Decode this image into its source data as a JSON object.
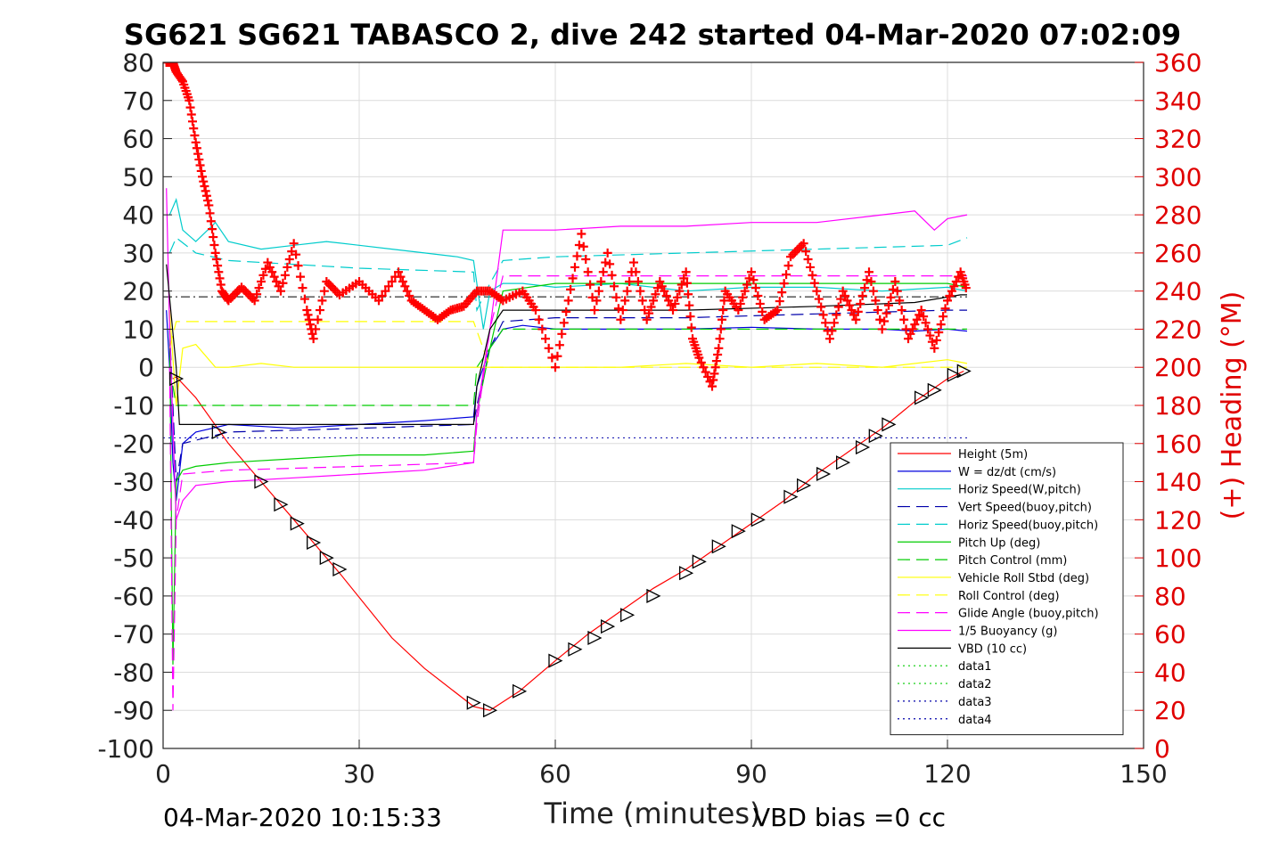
{
  "chart_data": {
    "type": "line",
    "title": "SG621 SG621 TABASCO 2, dive 242 started 04-Mar-2020 07:02:09",
    "xlabel": "Time (minutes)",
    "ylabel_right": "(+) Heading (°M)",
    "xlim": [
      0,
      150
    ],
    "ylim": [
      -100,
      80
    ],
    "ylim_right": [
      0,
      360
    ],
    "x_ticks": [
      "0",
      "30",
      "60",
      "90",
      "120",
      "150"
    ],
    "y_ticks": [
      "80",
      "70",
      "60",
      "50",
      "40",
      "30",
      "20",
      "10",
      "0",
      "-10",
      "-20",
      "-30",
      "-40",
      "-50",
      "-60",
      "-70",
      "-80",
      "-90",
      "-100"
    ],
    "y_ticks_right": [
      "360",
      "340",
      "320",
      "300",
      "280",
      "260",
      "240",
      "220",
      "200",
      "180",
      "160",
      "140",
      "120",
      "100",
      "80",
      "60",
      "40",
      "20",
      "0"
    ],
    "grid": true,
    "legend_position": "lower-right",
    "footer_left": "04-Mar-2020 10:15:33",
    "footer_right": "VBD bias =0 cc",
    "series": [
      {
        "name": "Height (5m)",
        "color": "#ff0000",
        "style": "solid",
        "x": [
          1.5,
          2,
          5,
          10,
          15,
          20,
          25,
          27,
          35,
          40,
          47.5,
          50,
          54.5,
          60,
          65,
          70,
          75,
          80,
          85,
          90,
          95,
          100,
          105,
          110,
          115,
          120,
          122.5
        ],
        "y": [
          -3,
          -2.5,
          -8,
          -20,
          -30,
          -40,
          -50,
          -54,
          -71,
          -79,
          -89,
          -90,
          -85,
          -77,
          -70,
          -64,
          -58,
          -53,
          -47,
          -41,
          -35,
          -28,
          -22,
          -16,
          -9,
          -3,
          -1
        ]
      },
      {
        "name": "W = dz/dt (cm/s)",
        "color": "#0000dd",
        "style": "solid",
        "x": [
          0.5,
          1,
          1.5,
          2,
          3,
          5,
          10,
          20,
          30,
          40,
          47.5,
          48,
          50,
          52,
          55,
          60,
          70,
          80,
          90,
          100,
          110,
          115,
          120,
          123
        ],
        "y": [
          15,
          0,
          -25,
          -35,
          -20,
          -17,
          -15,
          -16,
          -15,
          -14,
          -13,
          -5,
          5,
          10,
          11,
          10,
          10,
          10,
          10.5,
          10,
          10,
          9.5,
          10,
          9.5
        ]
      },
      {
        "name": "Horiz Speed(W,pitch)",
        "color": "#00cccc",
        "style": "solid",
        "x": [
          1,
          2,
          3,
          5,
          8,
          10,
          15,
          20,
          25,
          30,
          35,
          40,
          45,
          47.5,
          49,
          50,
          52,
          55,
          60,
          70,
          80,
          90,
          100,
          110,
          120,
          123
        ],
        "y": [
          40,
          44,
          36,
          33,
          38,
          33,
          31,
          32,
          33,
          32,
          31,
          30,
          29,
          28,
          10,
          20,
          22,
          22,
          21,
          22,
          20,
          21,
          21,
          20,
          21,
          20
        ]
      },
      {
        "name": "Vert Speed(buoy,pitch)",
        "color": "#0000aa",
        "style": "dashed",
        "x": [
          1,
          2,
          3,
          10,
          30,
          47.5,
          48,
          50,
          52,
          60,
          80,
          100,
          120,
          123
        ],
        "y": [
          10,
          -30,
          -20,
          -17,
          -16,
          -15,
          -10,
          5,
          12,
          13,
          13,
          14,
          15,
          15
        ]
      },
      {
        "name": "Horiz Speed(buoy,pitch)",
        "color": "#00cccc",
        "style": "dashed",
        "x": [
          1,
          2,
          5,
          10,
          30,
          47.5,
          48,
          50,
          52,
          60,
          80,
          100,
          120,
          123
        ],
        "y": [
          30,
          34,
          30,
          28,
          26,
          25,
          15,
          22,
          28,
          29,
          30,
          31,
          32,
          34
        ]
      },
      {
        "name": "Pitch Up (deg)",
        "color": "#00cc00",
        "style": "solid",
        "x": [
          1,
          1.5,
          2,
          3,
          5,
          10,
          20,
          30,
          40,
          47.5,
          48,
          50,
          52,
          60,
          80,
          100,
          120,
          123
        ],
        "y": [
          10,
          -78,
          -30,
          -27,
          -26,
          -25,
          -24,
          -23,
          -23,
          -22,
          -12,
          5,
          20,
          22,
          22,
          22,
          22,
          21
        ]
      },
      {
        "name": "Pitch Control (mm)",
        "color": "#00cc00",
        "style": "dashed",
        "x": [
          1,
          2,
          3,
          10,
          30,
          47.5,
          48,
          52,
          60,
          80,
          100,
          120,
          123
        ],
        "y": [
          0,
          -10,
          -10,
          -10,
          -10,
          -10,
          0,
          10,
          10,
          10,
          10,
          10,
          10
        ]
      },
      {
        "name": "Vehicle Roll Stbd (deg)",
        "color": "#ffff00",
        "style": "solid",
        "x": [
          1,
          2,
          3,
          5,
          8,
          10,
          15,
          20,
          30,
          40,
          47.5,
          50,
          55,
          60,
          70,
          80,
          90,
          100,
          110,
          120,
          123
        ],
        "y": [
          15,
          -10,
          5,
          6,
          0,
          0,
          1,
          0,
          0,
          0,
          0,
          0,
          0,
          0,
          0,
          1,
          0,
          1,
          0,
          2,
          1
        ]
      },
      {
        "name": "Roll Control (deg)",
        "color": "#ffff00",
        "style": "dashed",
        "x": [
          1,
          2,
          3,
          10,
          30,
          47.5,
          50,
          60,
          80,
          100,
          120,
          123
        ],
        "y": [
          5,
          12,
          12,
          12,
          12,
          12,
          0,
          0,
          0,
          0,
          0,
          0
        ]
      },
      {
        "name": "Glide Angle (buoy,pitch)",
        "color": "#ff00ff",
        "style": "dashed",
        "x": [
          1,
          1.5,
          2,
          3,
          10,
          30,
          47.5,
          48,
          50,
          52,
          60,
          80,
          100,
          120,
          123
        ],
        "y": [
          0,
          -90,
          -40,
          -28,
          -27,
          -26,
          -25,
          -15,
          10,
          24,
          24,
          24,
          24,
          24,
          24
        ]
      },
      {
        "name": "1/5 Buoyancy (g)",
        "color": "#ff00ff",
        "style": "solid",
        "x": [
          0.5,
          1,
          2,
          3,
          5,
          10,
          20,
          30,
          40,
          47.5,
          48,
          50,
          52,
          60,
          70,
          80,
          90,
          100,
          110,
          115,
          118,
          120,
          123
        ],
        "y": [
          47,
          10,
          -40,
          -35,
          -31,
          -30,
          -29,
          -28,
          -27,
          -25,
          -12,
          10,
          36,
          36,
          37,
          37,
          38,
          38,
          40,
          41,
          36,
          39,
          40
        ]
      },
      {
        "name": "VBD (10 cc)",
        "color": "#000000",
        "style": "solid",
        "x": [
          0.5,
          2,
          2.5,
          47.5,
          48,
          50,
          52,
          60,
          80,
          100,
          115,
          122,
          123
        ],
        "y": [
          27,
          0,
          -15,
          -15,
          -5,
          10,
          15,
          15,
          15,
          16,
          17,
          19,
          19
        ]
      },
      {
        "name": "data1",
        "color": "#00cc00",
        "style": "dotted",
        "x": [],
        "y": []
      },
      {
        "name": "data2",
        "color": "#00cc00",
        "style": "dotted",
        "x": [],
        "y": []
      },
      {
        "name": "data3",
        "color": "#0000aa",
        "style": "dotted",
        "x": [],
        "y": []
      },
      {
        "name": "data4",
        "color": "#0000aa",
        "style": "dotted",
        "x": [],
        "y": []
      }
    ],
    "reference_lines": [
      {
        "color": "#000000",
        "style": "dashdot",
        "y": 18.5,
        "x": [
          0,
          123
        ]
      },
      {
        "color": "#0000aa",
        "style": "dotted",
        "y": -18.5,
        "x": [
          0,
          123
        ]
      }
    ],
    "heading": {
      "color": "#ff0000",
      "marker": "+",
      "axis": "right",
      "x": [
        0.5,
        1,
        1.5,
        2,
        3,
        4,
        5,
        6,
        7,
        8,
        9,
        10,
        12,
        14,
        16,
        18,
        20,
        22,
        23,
        25,
        27,
        30,
        33,
        36,
        38,
        40,
        42,
        44,
        46,
        48,
        50,
        52,
        55,
        57,
        60,
        62,
        64,
        66,
        68,
        70,
        72,
        74,
        76,
        78,
        80,
        81,
        82,
        84,
        85,
        86,
        88,
        90,
        92,
        94,
        96,
        98,
        100,
        102,
        104,
        106,
        108,
        110,
        112,
        114,
        116,
        118,
        120,
        122,
        123
      ],
      "y": [
        360,
        360,
        360,
        355,
        350,
        340,
        318,
        300,
        285,
        260,
        240,
        235,
        242,
        235,
        255,
        240,
        265,
        230,
        215,
        245,
        238,
        245,
        235,
        250,
        235,
        230,
        225,
        230,
        232,
        240,
        240,
        235,
        240,
        230,
        200,
        235,
        270,
        230,
        260,
        225,
        255,
        225,
        245,
        230,
        250,
        215,
        205,
        190,
        210,
        240,
        230,
        250,
        225,
        230,
        258,
        265,
        240,
        215,
        240,
        225,
        250,
        220,
        245,
        215,
        230,
        210,
        235,
        250,
        240
      ]
    },
    "markers": {
      "type": "triangle",
      "color": "#000000",
      "x": [
        2,
        8.5,
        15,
        18,
        20.5,
        23,
        25,
        27,
        47.5,
        50,
        54.5,
        60,
        63,
        66,
        68,
        71,
        75,
        80,
        82,
        85,
        88,
        91,
        96,
        98,
        101,
        104,
        107,
        109,
        111,
        116,
        118,
        121,
        122.5
      ],
      "y": [
        -3,
        -17,
        -30,
        -36,
        -41,
        -46,
        -50,
        -53,
        -88,
        -90,
        -85,
        -77,
        -74,
        -71,
        -68,
        -65,
        -60,
        -54,
        -51,
        -47,
        -43,
        -40,
        -34,
        -31,
        -28,
        -25,
        -21,
        -18,
        -15,
        -8,
        -6,
        -2,
        -1
      ]
    }
  }
}
